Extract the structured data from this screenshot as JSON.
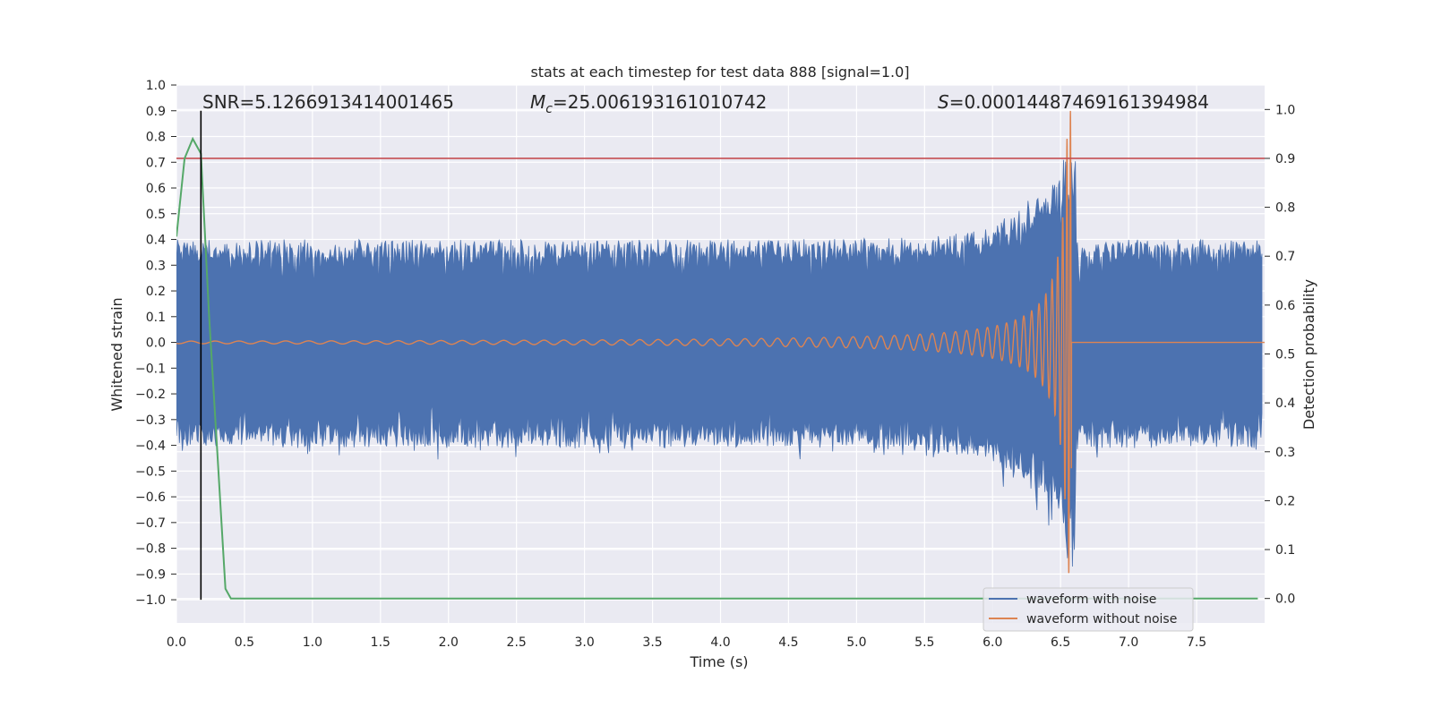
{
  "chart_data": {
    "type": "line",
    "title": "stats at each timestep for test data 888 [signal=1.0]",
    "xlabel": "Time (s)",
    "ylabel": "Whitened strain",
    "y2label": "Detection probability",
    "xlim": [
      0.0,
      8.0
    ],
    "ylim": [
      -1.09,
      1.0
    ],
    "y2lim": [
      -0.05,
      1.05
    ],
    "grid": true,
    "legend_position": "lower-right",
    "colors": {
      "background": "#eaeaf2",
      "grid": "#ffffff",
      "noisy": "#4c72b0",
      "clean": "#dd8452",
      "probability": "#55a868",
      "threshold": "#c44e52",
      "marker": "#000000",
      "text": "#262626"
    },
    "x_ticks": [
      "0.0",
      "0.5",
      "1.0",
      "1.5",
      "2.0",
      "2.5",
      "3.0",
      "3.5",
      "4.0",
      "4.5",
      "5.0",
      "5.5",
      "6.0",
      "6.5",
      "7.0",
      "7.5"
    ],
    "y_ticks": [
      "1.0",
      "0.9",
      "0.8",
      "0.7",
      "0.6",
      "0.5",
      "0.4",
      "0.3",
      "0.2",
      "0.1",
      "0.0",
      "−0.1",
      "−0.2",
      "−0.3",
      "−0.4",
      "−0.5",
      "−0.6",
      "−0.7",
      "−0.8",
      "−0.9",
      "−1.0"
    ],
    "y2_ticks": [
      "1.0",
      "0.9",
      "0.8",
      "0.7",
      "0.6",
      "0.5",
      "0.4",
      "0.3",
      "0.2",
      "0.1",
      "0.0"
    ],
    "annotations": {
      "snr": "SNR=5.1266913414001465",
      "mc_symbol": "M",
      "mc_sub": "c",
      "mc_value": "=25.006193161010742",
      "s_symbol": "S",
      "s_value": "=0.00014487469161394984"
    },
    "series": [
      {
        "name": "waveform with noise",
        "axis": "left",
        "description": "whitened noisy strain; band roughly ±0.42 with peaks near the merger",
        "envelope": {
          "typical_upper": 0.41,
          "typical_lower": -0.42,
          "merger_peak_upper": 0.81,
          "merger_peak_lower": -0.94
        },
        "color_key": "noisy"
      },
      {
        "name": "waveform without noise",
        "axis": "left",
        "description": "chirp waveform, amplitude growing to the merger at about t=6.58 s, then zero",
        "merger_time": 6.58,
        "amplitude_start": 0.005,
        "amplitude_peak": 0.9,
        "color_key": "clean"
      },
      {
        "name": "detection probability",
        "axis": "right",
        "x": [
          0.0,
          0.06,
          0.12,
          0.18,
          0.24,
          0.3,
          0.36,
          0.4,
          7.95
        ],
        "y": [
          0.74,
          0.9,
          0.94,
          0.91,
          0.58,
          0.3,
          0.02,
          0.0,
          0.0
        ],
        "color_key": "probability"
      }
    ],
    "threshold": {
      "axis": "right",
      "value": 0.9
    },
    "marker_line": {
      "x": 0.18,
      "y_range": [
        -1.0,
        0.9
      ]
    }
  }
}
